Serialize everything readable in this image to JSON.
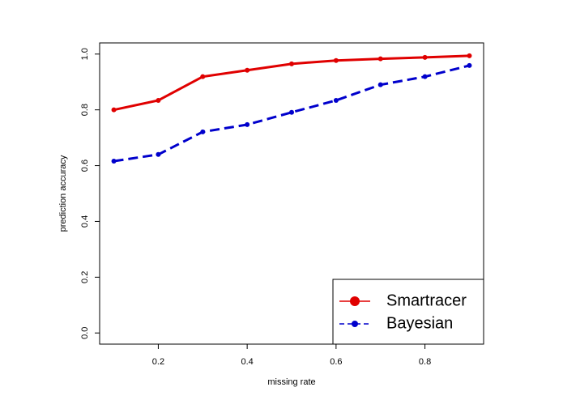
{
  "chart_data": {
    "type": "line",
    "x_label": "missing rate",
    "y_label": "prediction accuracy",
    "x": [
      0.1,
      0.2,
      0.3,
      0.4,
      0.5,
      0.6,
      0.7,
      0.8,
      0.9
    ],
    "series": [
      {
        "name": "Smartracer",
        "color": "#e00000",
        "linestyle": "solid",
        "values": [
          0.8,
          0.834,
          0.919,
          0.942,
          0.965,
          0.977,
          0.983,
          0.988,
          0.994
        ]
      },
      {
        "name": "Bayesian",
        "color": "#0000cc",
        "linestyle": "dashed",
        "values": [
          0.616,
          0.64,
          0.721,
          0.747,
          0.791,
          0.834,
          0.89,
          0.919,
          0.959
        ]
      }
    ],
    "xlim": [
      0.068,
      0.932
    ],
    "xticks": [
      0.2,
      0.4,
      0.6,
      0.8
    ],
    "ylim": [
      -0.04,
      1.04
    ],
    "yticks": [
      {
        "value": 0,
        "label": "0.0"
      },
      0.2,
      0.4,
      0.6,
      0.8,
      {
        "value": 1,
        "label": "1.0"
      }
    ],
    "legend": "bottom-right",
    "grid": false
  }
}
